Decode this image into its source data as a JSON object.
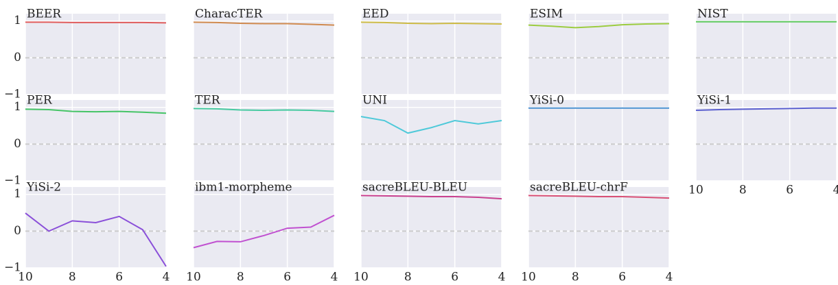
{
  "chart_data": [
    {
      "type": "line",
      "x": [
        10,
        9,
        8,
        7,
        6,
        5,
        4
      ],
      "series": [
        {
          "name": "BEER",
          "color": "#e05c5c",
          "values": [
            0.97,
            0.97,
            0.96,
            0.96,
            0.96,
            0.96,
            0.95
          ]
        }
      ],
      "xlim": [
        10,
        4
      ],
      "ylim": [
        -1,
        1.2
      ],
      "xticks": [
        10,
        8,
        6,
        4
      ],
      "yticks": [
        {
          "value": -1,
          "label": "−1"
        },
        0,
        1
      ],
      "reference_line": 0,
      "x_tick_labels": false,
      "y_tick_labels": true
    },
    {
      "type": "line",
      "x": [
        10,
        9,
        8,
        7,
        6,
        5,
        4
      ],
      "series": [
        {
          "name": "CharacTER",
          "color": "#d08a4e",
          "values": [
            0.97,
            0.96,
            0.94,
            0.93,
            0.93,
            0.91,
            0.89
          ]
        }
      ],
      "xlim": [
        10,
        4
      ],
      "ylim": [
        -1,
        1.2
      ],
      "xticks": [
        10,
        8,
        6,
        4
      ],
      "yticks": [
        {
          "value": -1,
          "label": "−1"
        },
        0,
        1
      ],
      "reference_line": 0,
      "x_tick_labels": false,
      "y_tick_labels": false
    },
    {
      "type": "line",
      "x": [
        10,
        9,
        8,
        7,
        6,
        5,
        4
      ],
      "series": [
        {
          "name": "EED",
          "color": "#cdbb45",
          "values": [
            0.97,
            0.96,
            0.94,
            0.93,
            0.94,
            0.93,
            0.92
          ]
        }
      ],
      "xlim": [
        10,
        4
      ],
      "ylim": [
        -1,
        1.2
      ],
      "xticks": [
        10,
        8,
        6,
        4
      ],
      "yticks": [
        {
          "value": -1,
          "label": "−1"
        },
        0,
        1
      ],
      "reference_line": 0,
      "x_tick_labels": false,
      "y_tick_labels": false
    },
    {
      "type": "line",
      "x": [
        10,
        9,
        8,
        7,
        6,
        5,
        4
      ],
      "series": [
        {
          "name": "ESIM",
          "color": "#9ccc3f",
          "values": [
            0.89,
            0.86,
            0.82,
            0.85,
            0.9,
            0.92,
            0.93
          ]
        }
      ],
      "xlim": [
        10,
        4
      ],
      "ylim": [
        -1,
        1.2
      ],
      "xticks": [
        10,
        8,
        6,
        4
      ],
      "yticks": [
        {
          "value": -1,
          "label": "−1"
        },
        0,
        1
      ],
      "reference_line": 0,
      "x_tick_labels": false,
      "y_tick_labels": false
    },
    {
      "type": "line",
      "x": [
        10,
        9,
        8,
        7,
        6,
        5,
        4
      ],
      "series": [
        {
          "name": "NIST",
          "color": "#5cc85c",
          "values": [
            0.98,
            0.98,
            0.98,
            0.98,
            0.98,
            0.98,
            0.98
          ]
        }
      ],
      "xlim": [
        10,
        4
      ],
      "ylim": [
        -1,
        1.2
      ],
      "xticks": [
        10,
        8,
        6,
        4
      ],
      "yticks": [
        {
          "value": -1,
          "label": "−1"
        },
        0,
        1
      ],
      "reference_line": 0,
      "x_tick_labels": false,
      "y_tick_labels": false
    },
    {
      "type": "line",
      "x": [
        10,
        9,
        8,
        7,
        6,
        5,
        4
      ],
      "series": [
        {
          "name": "PER",
          "color": "#45c466",
          "values": [
            0.95,
            0.94,
            0.89,
            0.88,
            0.89,
            0.87,
            0.84
          ]
        }
      ],
      "xlim": [
        10,
        4
      ],
      "ylim": [
        -1,
        1.2
      ],
      "xticks": [
        10,
        8,
        6,
        4
      ],
      "yticks": [
        {
          "value": -1,
          "label": "−1"
        },
        0,
        1
      ],
      "reference_line": 0,
      "x_tick_labels": false,
      "y_tick_labels": true
    },
    {
      "type": "line",
      "x": [
        10,
        9,
        8,
        7,
        6,
        5,
        4
      ],
      "series": [
        {
          "name": "TER",
          "color": "#45c9a0",
          "values": [
            0.97,
            0.96,
            0.93,
            0.92,
            0.93,
            0.92,
            0.89
          ]
        }
      ],
      "xlim": [
        10,
        4
      ],
      "ylim": [
        -1,
        1.2
      ],
      "xticks": [
        10,
        8,
        6,
        4
      ],
      "yticks": [
        {
          "value": -1,
          "label": "−1"
        },
        0,
        1
      ],
      "reference_line": 0,
      "x_tick_labels": false,
      "y_tick_labels": false
    },
    {
      "type": "line",
      "x": [
        10,
        9,
        8,
        7,
        6,
        5,
        4
      ],
      "series": [
        {
          "name": "UNI",
          "color": "#4ec9d9",
          "values": [
            0.75,
            0.64,
            0.3,
            0.45,
            0.64,
            0.55,
            0.64
          ]
        }
      ],
      "xlim": [
        10,
        4
      ],
      "ylim": [
        -1,
        1.2
      ],
      "xticks": [
        10,
        8,
        6,
        4
      ],
      "yticks": [
        {
          "value": -1,
          "label": "−1"
        },
        0,
        1
      ],
      "reference_line": 0,
      "x_tick_labels": false,
      "y_tick_labels": false
    },
    {
      "type": "line",
      "x": [
        10,
        9,
        8,
        7,
        6,
        5,
        4
      ],
      "series": [
        {
          "name": "YiSi-0",
          "color": "#4a90d0",
          "values": [
            0.98,
            0.98,
            0.98,
            0.98,
            0.98,
            0.98,
            0.98
          ]
        }
      ],
      "xlim": [
        10,
        4
      ],
      "ylim": [
        -1,
        1.2
      ],
      "xticks": [
        10,
        8,
        6,
        4
      ],
      "yticks": [
        {
          "value": -1,
          "label": "−1"
        },
        0,
        1
      ],
      "reference_line": 0,
      "x_tick_labels": false,
      "y_tick_labels": false
    },
    {
      "type": "line",
      "x": [
        10,
        9,
        8,
        7,
        6,
        5,
        4
      ],
      "series": [
        {
          "name": "YiSi-1",
          "color": "#5a5fcf",
          "values": [
            0.92,
            0.94,
            0.95,
            0.96,
            0.97,
            0.98,
            0.98
          ]
        }
      ],
      "xlim": [
        10,
        4
      ],
      "ylim": [
        -1,
        1.2
      ],
      "xticks": [
        10,
        8,
        6,
        4
      ],
      "yticks": [
        {
          "value": -1,
          "label": "−1"
        },
        0,
        1
      ],
      "reference_line": 0,
      "x_tick_labels": true,
      "y_tick_labels": false
    },
    {
      "type": "line",
      "x": [
        10,
        9,
        8,
        7,
        6,
        5,
        4
      ],
      "series": [
        {
          "name": "YiSi-2",
          "color": "#8a4fd9",
          "values": [
            0.49,
            0.0,
            0.28,
            0.23,
            0.4,
            0.04,
            -0.96
          ]
        }
      ],
      "xlim": [
        10,
        4
      ],
      "ylim": [
        -1,
        1.2
      ],
      "xticks": [
        10,
        8,
        6,
        4
      ],
      "yticks": [
        {
          "value": -1,
          "label": "−1"
        },
        0,
        1
      ],
      "reference_line": 0,
      "x_tick_labels": true,
      "y_tick_labels": true
    },
    {
      "type": "line",
      "x": [
        10,
        9,
        8,
        7,
        6,
        5,
        4
      ],
      "series": [
        {
          "name": "ibm1-morpheme",
          "color": "#c050d0",
          "values": [
            -0.45,
            -0.28,
            -0.29,
            -0.12,
            0.08,
            0.11,
            0.43
          ]
        }
      ],
      "xlim": [
        10,
        4
      ],
      "ylim": [
        -1,
        1.2
      ],
      "xticks": [
        10,
        8,
        6,
        4
      ],
      "yticks": [
        {
          "value": -1,
          "label": "−1"
        },
        0,
        1
      ],
      "reference_line": 0,
      "x_tick_labels": true,
      "y_tick_labels": false
    },
    {
      "type": "line",
      "x": [
        10,
        9,
        8,
        7,
        6,
        5,
        4
      ],
      "series": [
        {
          "name": "sacreBLEU-BLEU",
          "color": "#c9408f",
          "values": [
            0.97,
            0.96,
            0.95,
            0.94,
            0.94,
            0.92,
            0.88
          ]
        }
      ],
      "xlim": [
        10,
        4
      ],
      "ylim": [
        -1,
        1.2
      ],
      "xticks": [
        10,
        8,
        6,
        4
      ],
      "yticks": [
        {
          "value": -1,
          "label": "−1"
        },
        0,
        1
      ],
      "reference_line": 0,
      "x_tick_labels": true,
      "y_tick_labels": false
    },
    {
      "type": "line",
      "x": [
        10,
        9,
        8,
        7,
        6,
        5,
        4
      ],
      "series": [
        {
          "name": "sacreBLEU-chrF",
          "color": "#d94f75",
          "values": [
            0.97,
            0.96,
            0.95,
            0.94,
            0.94,
            0.92,
            0.9
          ]
        }
      ],
      "xlim": [
        10,
        4
      ],
      "ylim": [
        -1,
        1.2
      ],
      "xticks": [
        10,
        8,
        6,
        4
      ],
      "yticks": [
        {
          "value": -1,
          "label": "−1"
        },
        0,
        1
      ],
      "reference_line": 0,
      "x_tick_labels": true,
      "y_tick_labels": false
    }
  ]
}
